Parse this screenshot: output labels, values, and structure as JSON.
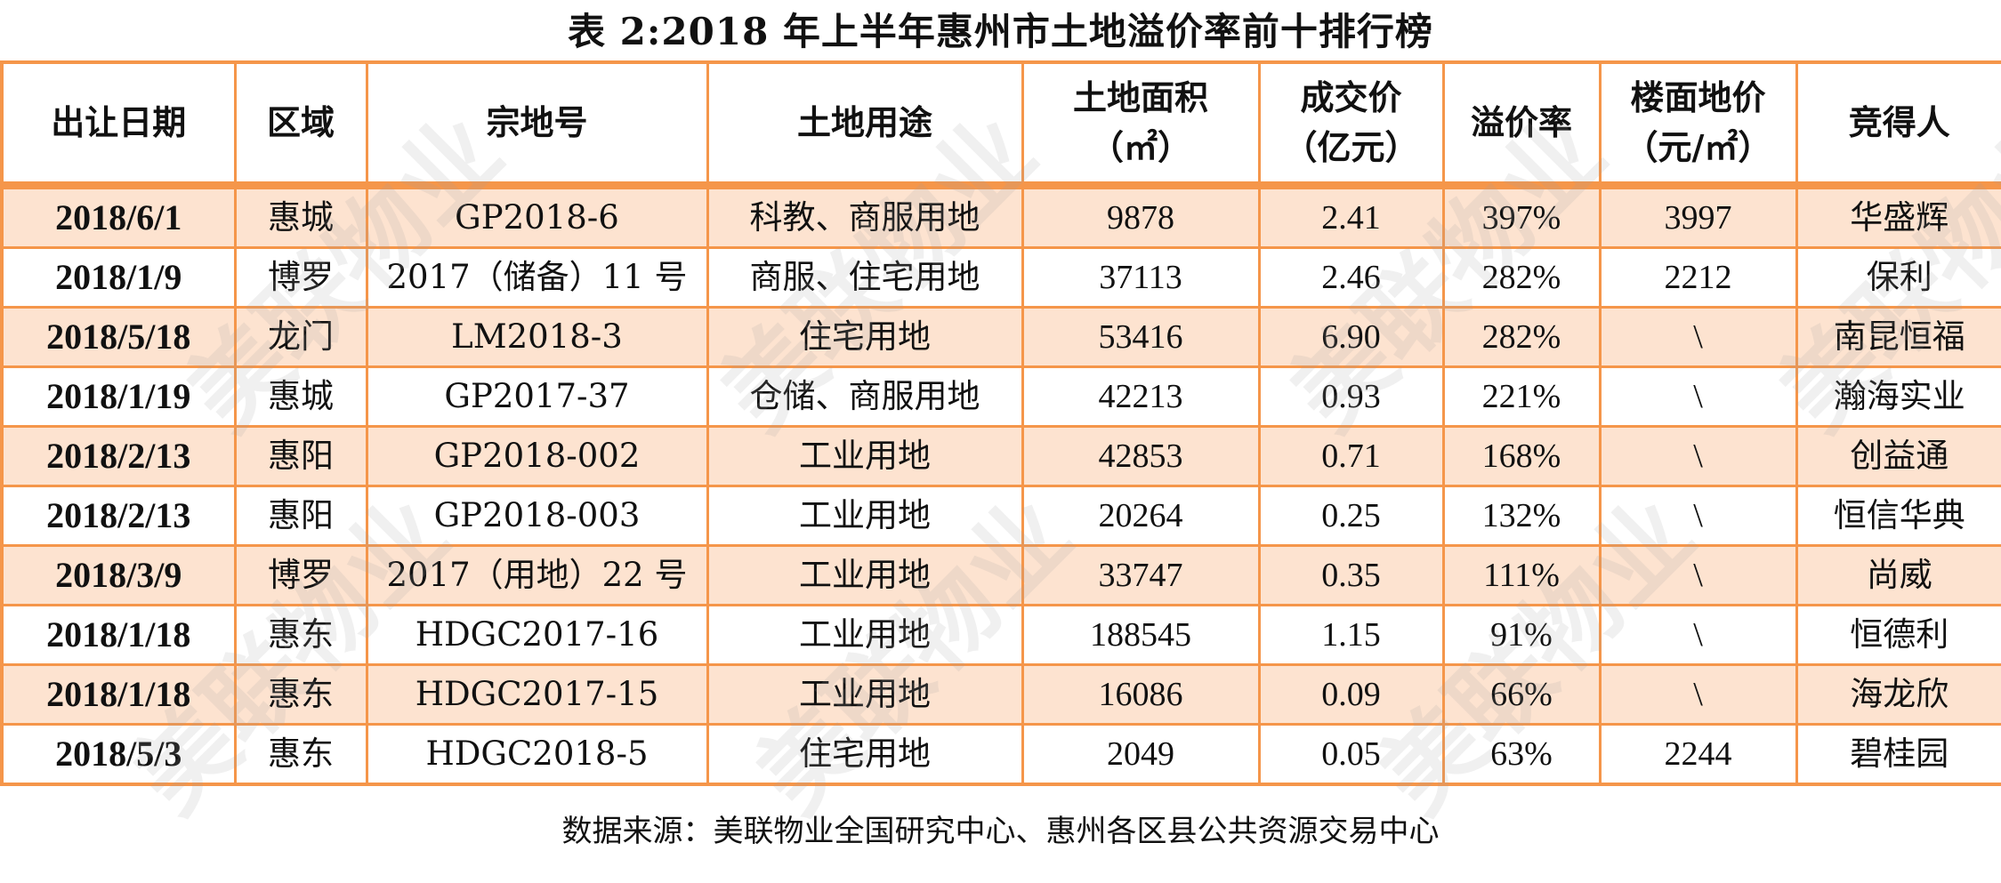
{
  "title": "表 2:2018 年上半年惠州市土地溢价率前十排行榜",
  "watermark": "美联物业",
  "colors": {
    "border": "#f5964a",
    "shaded_row": "#fde3d0",
    "plain_row": "#ffffff"
  },
  "table": {
    "headers": [
      {
        "line1": "出让日期",
        "line2": ""
      },
      {
        "line1": "区域",
        "line2": ""
      },
      {
        "line1": "宗地号",
        "line2": ""
      },
      {
        "line1": "土地用途",
        "line2": ""
      },
      {
        "line1": "土地面积",
        "line2": "（㎡）"
      },
      {
        "line1": "成交价",
        "line2": "（亿元）"
      },
      {
        "line1": "溢价率",
        "line2": ""
      },
      {
        "line1": "楼面地价",
        "line2": "（元/㎡）"
      },
      {
        "line1": "竞得人",
        "line2": ""
      }
    ],
    "rows": [
      {
        "date": "2018/6/1",
        "district": "惠城",
        "parcel": "GP2018-6",
        "use": "科教、商服用地",
        "area": "9878",
        "price": "2.41",
        "premium": "397%",
        "floor_price": "3997",
        "winner": "华盛辉"
      },
      {
        "date": "2018/1/9",
        "district": "博罗",
        "parcel": "2017（储备）11 号",
        "use": "商服、住宅用地",
        "area": "37113",
        "price": "2.46",
        "premium": "282%",
        "floor_price": "2212",
        "winner": "保利"
      },
      {
        "date": "2018/5/18",
        "district": "龙门",
        "parcel": "LM2018-3",
        "use": "住宅用地",
        "area": "53416",
        "price": "6.90",
        "premium": "282%",
        "floor_price": "\\",
        "winner": "南昆恒福"
      },
      {
        "date": "2018/1/19",
        "district": "惠城",
        "parcel": "GP2017-37",
        "use": "仓储、商服用地",
        "area": "42213",
        "price": "0.93",
        "premium": "221%",
        "floor_price": "\\",
        "winner": "瀚海实业"
      },
      {
        "date": "2018/2/13",
        "district": "惠阳",
        "parcel": "GP2018-002",
        "use": "工业用地",
        "area": "42853",
        "price": "0.71",
        "premium": "168%",
        "floor_price": "\\",
        "winner": "创益通"
      },
      {
        "date": "2018/2/13",
        "district": "惠阳",
        "parcel": "GP2018-003",
        "use": "工业用地",
        "area": "20264",
        "price": "0.25",
        "premium": "132%",
        "floor_price": "\\",
        "winner": "恒信华典"
      },
      {
        "date": "2018/3/9",
        "district": "博罗",
        "parcel": "2017（用地）22 号",
        "use": "工业用地",
        "area": "33747",
        "price": "0.35",
        "premium": "111%",
        "floor_price": "\\",
        "winner": "尚威"
      },
      {
        "date": "2018/1/18",
        "district": "惠东",
        "parcel": "HDGC2017-16",
        "use": "工业用地",
        "area": "188545",
        "price": "1.15",
        "premium": "91%",
        "floor_price": "\\",
        "winner": "恒德利"
      },
      {
        "date": "2018/1/18",
        "district": "惠东",
        "parcel": "HDGC2017-15",
        "use": "工业用地",
        "area": "16086",
        "price": "0.09",
        "premium": "66%",
        "floor_price": "\\",
        "winner": "海龙欣"
      },
      {
        "date": "2018/5/3",
        "district": "惠东",
        "parcel": "HDGC2018-5",
        "use": "住宅用地",
        "area": "2049",
        "price": "0.05",
        "premium": "63%",
        "floor_price": "2244",
        "winner": "碧桂园"
      }
    ]
  },
  "footnote": "数据来源：美联物业全国研究中心、惠州各区县公共资源交易中心"
}
